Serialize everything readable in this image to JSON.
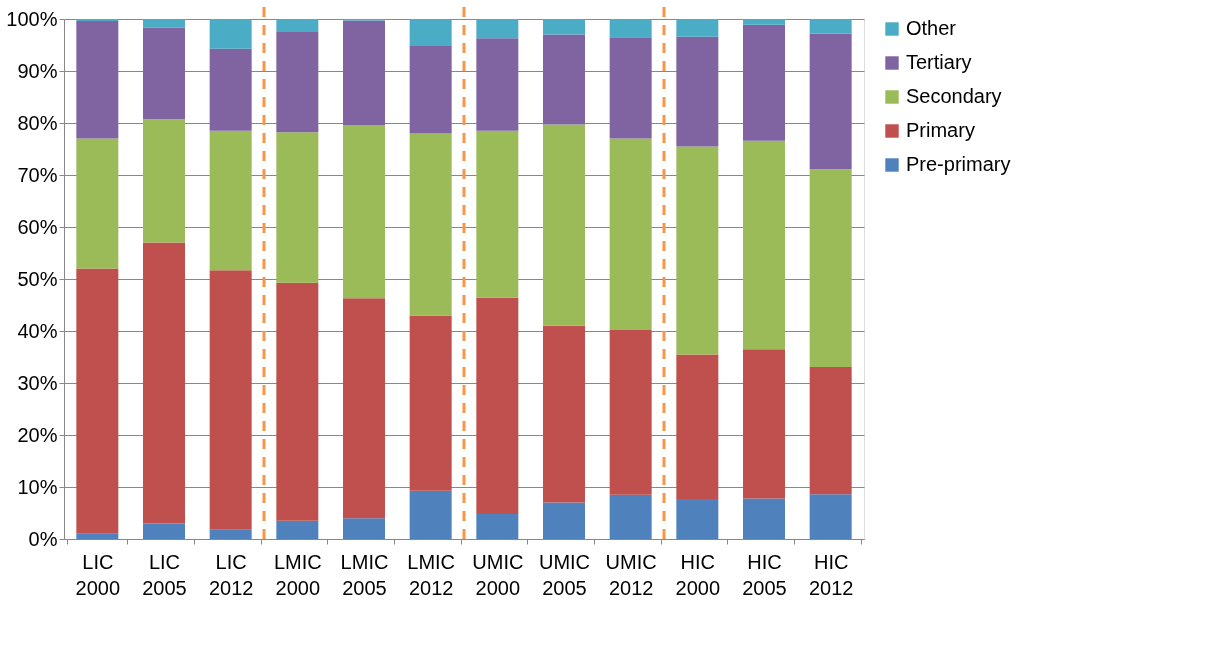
{
  "chart_data": {
    "type": "bar",
    "stacked": true,
    "categories": [
      "LIC 2000",
      "LIC 2005",
      "LIC 2012",
      "LMIC 2000",
      "LMIC 2005",
      "LMIC 2012",
      "UMIC 2000",
      "UMIC 2005",
      "UMIC 2012",
      "HIC 2000",
      "HIC 2005",
      "HIC 2012"
    ],
    "series": [
      {
        "name": "Pre-primary",
        "color": "#4f81bd",
        "values": [
          1,
          3,
          1.8,
          3.5,
          4,
          9.3,
          4.8,
          7,
          8.5,
          7.7,
          7.8,
          8.6
        ]
      },
      {
        "name": "Primary",
        "color": "#c0504d",
        "values": [
          51,
          54,
          49.9,
          45.8,
          42.3,
          33.7,
          41.6,
          34,
          31.7,
          27.8,
          28.7,
          24.5
        ]
      },
      {
        "name": "Secondary",
        "color": "#9bbb59",
        "values": [
          25,
          23.7,
          26.8,
          28.9,
          33.3,
          35,
          32.1,
          38.7,
          36.8,
          40,
          40.1,
          38
        ]
      },
      {
        "name": "Tertiary",
        "color": "#8064a2",
        "values": [
          22.6,
          17.6,
          15.8,
          19.3,
          20.1,
          16.8,
          17.8,
          17.3,
          19.5,
          21.1,
          22.3,
          26.1
        ]
      },
      {
        "name": "Other",
        "color": "#4bacc6",
        "values": [
          0.4,
          1.7,
          5.7,
          2.5,
          0.3,
          5.2,
          3.7,
          3,
          3.5,
          3.4,
          1.1,
          2.8
        ]
      }
    ],
    "ylim": [
      0,
      100
    ],
    "yticks": [
      {
        "value": 0,
        "label": "0%"
      },
      {
        "value": 10,
        "label": "10%"
      },
      {
        "value": 20,
        "label": "20%"
      },
      {
        "value": 30,
        "label": "30%"
      },
      {
        "value": 40,
        "label": "40%"
      },
      {
        "value": 50,
        "label": "50%"
      },
      {
        "value": 60,
        "label": "60%"
      },
      {
        "value": 70,
        "label": "70%"
      },
      {
        "value": 80,
        "label": "80%"
      },
      {
        "value": 90,
        "label": "90%"
      },
      {
        "value": 100,
        "label": "100%"
      }
    ],
    "grid": "y",
    "legend": "right"
  }
}
